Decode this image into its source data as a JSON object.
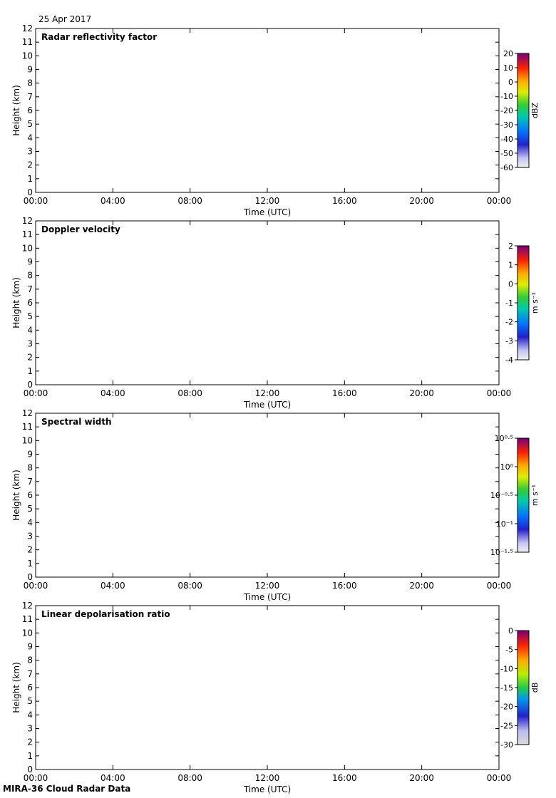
{
  "header": {
    "date": "25 Apr 2017"
  },
  "footer": {
    "label": "MIRA-36 Cloud Radar Data"
  },
  "colors": {
    "cloud_blue": "#2233dd",
    "cloud_green": "#33cc33",
    "cloud_yellow": "#eedd00",
    "cloud_orange": "#ff7700",
    "cloud_red": "#ee1111",
    "ldr_gray": "#dcdcdc",
    "ldr_blue": "#6666ee"
  },
  "chart_data": [
    {
      "type": "heatmap",
      "title": "Radar reflectivity factor",
      "xlabel": "Time (UTC)",
      "ylabel": "Height (km)",
      "xlim": [
        0,
        24
      ],
      "ylim": [
        0,
        12
      ],
      "xticks": [
        "00:00",
        "04:00",
        "08:00",
        "12:00",
        "16:00",
        "20:00",
        "00:00"
      ],
      "yticks": [
        "0",
        "1",
        "2",
        "3",
        "4",
        "5",
        "6",
        "7",
        "8",
        "9",
        "10",
        "11",
        "12"
      ],
      "colorbar": {
        "label": "dBZ",
        "ticks": [
          "20",
          "10",
          "0",
          "-10",
          "-20",
          "-30",
          "-40",
          "-50",
          "-60"
        ],
        "range": [
          -60,
          20
        ]
      }
    },
    {
      "type": "heatmap",
      "title": "Doppler velocity",
      "xlabel": "Time (UTC)",
      "ylabel": "Height (km)",
      "xlim": [
        0,
        24
      ],
      "ylim": [
        0,
        12
      ],
      "xticks": [
        "00:00",
        "04:00",
        "08:00",
        "12:00",
        "16:00",
        "20:00",
        "00:00"
      ],
      "yticks": [
        "0",
        "1",
        "2",
        "3",
        "4",
        "5",
        "6",
        "7",
        "8",
        "9",
        "10",
        "11",
        "12"
      ],
      "colorbar": {
        "label": "m s⁻¹",
        "ticks": [
          "2",
          "1",
          "0",
          "-1",
          "-2",
          "-3",
          "-4"
        ],
        "range": [
          -4,
          2
        ]
      }
    },
    {
      "type": "heatmap",
      "title": "Spectral width",
      "xlabel": "Time (UTC)",
      "ylabel": "Height (km)",
      "xlim": [
        0,
        24
      ],
      "ylim": [
        0,
        12
      ],
      "xticks": [
        "00:00",
        "04:00",
        "08:00",
        "12:00",
        "16:00",
        "20:00",
        "00:00"
      ],
      "yticks": [
        "0",
        "1",
        "2",
        "3",
        "4",
        "5",
        "6",
        "7",
        "8",
        "9",
        "10",
        "11",
        "12"
      ],
      "colorbar": {
        "label": "m s⁻¹",
        "ticks": [
          "10⁰·⁵",
          "10⁰",
          "10⁻⁰·⁵",
          "10⁻¹",
          "10⁻¹·⁵"
        ],
        "range": [
          -1.5,
          0.5
        ]
      }
    },
    {
      "type": "heatmap",
      "title": "Linear depolarisation ratio",
      "xlabel": "Time (UTC)",
      "ylabel": "Height (km)",
      "xlim": [
        0,
        24
      ],
      "ylim": [
        0,
        12
      ],
      "xticks": [
        "00:00",
        "04:00",
        "08:00",
        "12:00",
        "16:00",
        "20:00",
        "00:00"
      ],
      "yticks": [
        "0",
        "1",
        "2",
        "3",
        "4",
        "5",
        "6",
        "7",
        "8",
        "9",
        "10",
        "11",
        "12"
      ],
      "colorbar": {
        "label": "dB",
        "ticks": [
          "0",
          "-5",
          "-10",
          "-15",
          "-20",
          "-25",
          "-30"
        ],
        "range": [
          -30,
          0
        ]
      }
    }
  ]
}
